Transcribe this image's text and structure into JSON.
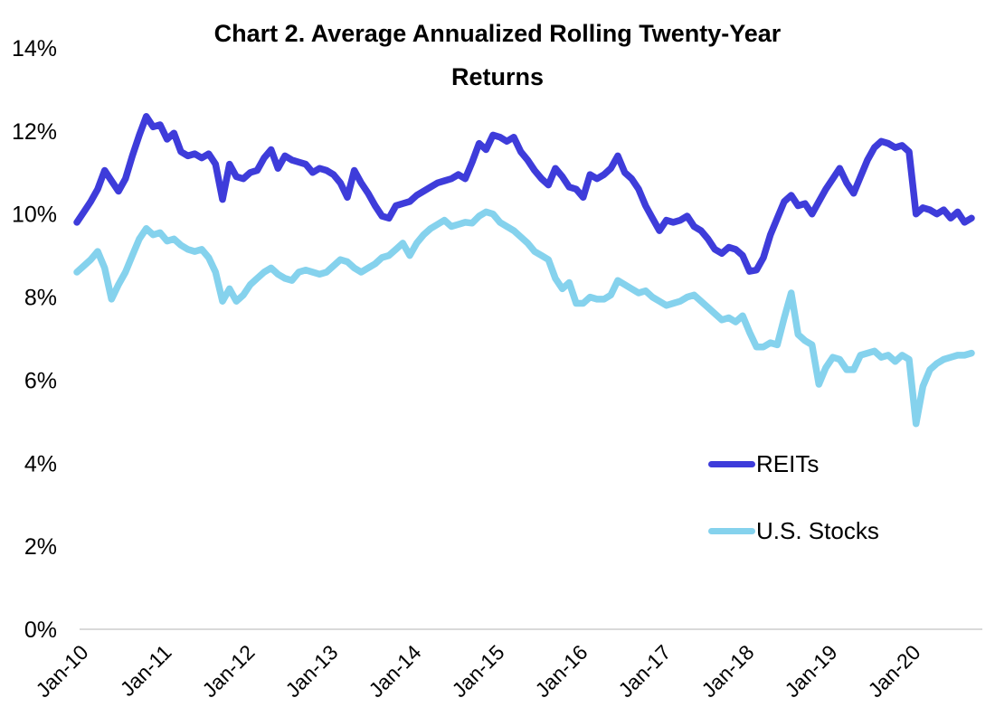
{
  "title": {
    "line1": "Chart 2. Average Annualized Rolling Twenty-Year",
    "line2": "Returns"
  },
  "legend": {
    "items": [
      {
        "label": "REITs",
        "color": "#3e3cda"
      },
      {
        "label": "U.S. Stocks",
        "color": "#85d2ed"
      }
    ]
  },
  "chart_data": {
    "type": "line",
    "title": "Chart 2. Average Annualized Rolling Twenty-Year Returns",
    "x_unit": "month",
    "x_start": "Jan-2010",
    "x_end": "Oct-2020",
    "x_tick_labels": [
      "Jan-10",
      "Jan-11",
      "Jan-12",
      "Jan-13",
      "Jan-14",
      "Jan-15",
      "Jan-16",
      "Jan-17",
      "Jan-18",
      "Jan-19",
      "Jan-20"
    ],
    "y_tick_labels": [
      "14%",
      "12%",
      "10%",
      "8%",
      "6%",
      "4%",
      "2%",
      "0%"
    ],
    "ylabel": "",
    "xlabel": "",
    "ylim": [
      0,
      14
    ],
    "grid": false,
    "axis_line_color": "#d9d9d9",
    "legend_position": "right-middle",
    "series": [
      {
        "name": "REITs",
        "color": "#3e3cda",
        "values": [
          9.8,
          10.05,
          10.3,
          10.6,
          11.05,
          10.8,
          10.55,
          10.85,
          11.4,
          11.9,
          12.35,
          12.1,
          12.15,
          11.8,
          11.95,
          11.5,
          11.4,
          11.45,
          11.35,
          11.45,
          11.2,
          10.35,
          11.2,
          10.9,
          10.85,
          11.0,
          11.05,
          11.35,
          11.55,
          11.1,
          11.4,
          11.3,
          11.25,
          11.2,
          11.0,
          11.1,
          11.05,
          10.95,
          10.75,
          10.4,
          11.05,
          10.75,
          10.5,
          10.2,
          9.95,
          9.9,
          10.2,
          10.25,
          10.3,
          10.45,
          10.55,
          10.65,
          10.75,
          10.8,
          10.85,
          10.95,
          10.85,
          11.25,
          11.7,
          11.55,
          11.9,
          11.85,
          11.75,
          11.85,
          11.5,
          11.3,
          11.05,
          10.85,
          10.7,
          11.1,
          10.9,
          10.65,
          10.6,
          10.4,
          10.95,
          10.85,
          10.95,
          11.1,
          11.4,
          11.0,
          10.85,
          10.6,
          10.2,
          9.9,
          9.6,
          9.85,
          9.8,
          9.85,
          9.95,
          9.7,
          9.6,
          9.4,
          9.15,
          9.05,
          9.2,
          9.15,
          9.0,
          8.62,
          8.65,
          8.95,
          9.5,
          9.9,
          10.3,
          10.45,
          10.2,
          10.25,
          10.0,
          10.3,
          10.6,
          10.85,
          11.1,
          10.75,
          10.5,
          10.9,
          11.3,
          11.6,
          11.75,
          11.7,
          11.6,
          11.65,
          11.5,
          10.0,
          10.15,
          10.1,
          10.0,
          10.1,
          9.9,
          10.05,
          9.8,
          9.9
        ]
      },
      {
        "name": "U.S. Stocks",
        "color": "#85d2ed",
        "values": [
          8.6,
          8.75,
          8.9,
          9.1,
          8.7,
          7.95,
          8.3,
          8.6,
          9.0,
          9.4,
          9.65,
          9.5,
          9.55,
          9.35,
          9.4,
          9.25,
          9.15,
          9.1,
          9.15,
          8.95,
          8.6,
          7.9,
          8.2,
          7.9,
          8.05,
          8.3,
          8.45,
          8.6,
          8.7,
          8.55,
          8.45,
          8.4,
          8.6,
          8.65,
          8.6,
          8.55,
          8.6,
          8.75,
          8.9,
          8.85,
          8.7,
          8.6,
          8.7,
          8.8,
          8.95,
          9.0,
          9.15,
          9.3,
          9.0,
          9.3,
          9.5,
          9.65,
          9.75,
          9.85,
          9.7,
          9.75,
          9.8,
          9.78,
          9.95,
          10.05,
          10.0,
          9.8,
          9.7,
          9.6,
          9.45,
          9.3,
          9.1,
          9.0,
          8.9,
          8.45,
          8.2,
          8.35,
          7.85,
          7.85,
          8.0,
          7.95,
          7.95,
          8.05,
          8.4,
          8.3,
          8.2,
          8.1,
          8.15,
          8.0,
          7.9,
          7.8,
          7.85,
          7.9,
          8.0,
          8.05,
          7.9,
          7.75,
          7.6,
          7.45,
          7.5,
          7.4,
          7.55,
          7.15,
          6.8,
          6.8,
          6.9,
          6.85,
          7.5,
          8.1,
          7.1,
          6.95,
          6.85,
          5.9,
          6.3,
          6.55,
          6.5,
          6.25,
          6.25,
          6.6,
          6.65,
          6.7,
          6.55,
          6.6,
          6.45,
          6.6,
          6.5,
          4.95,
          5.85,
          6.25,
          6.4,
          6.5,
          6.55,
          6.6,
          6.6,
          6.65
        ]
      }
    ]
  }
}
